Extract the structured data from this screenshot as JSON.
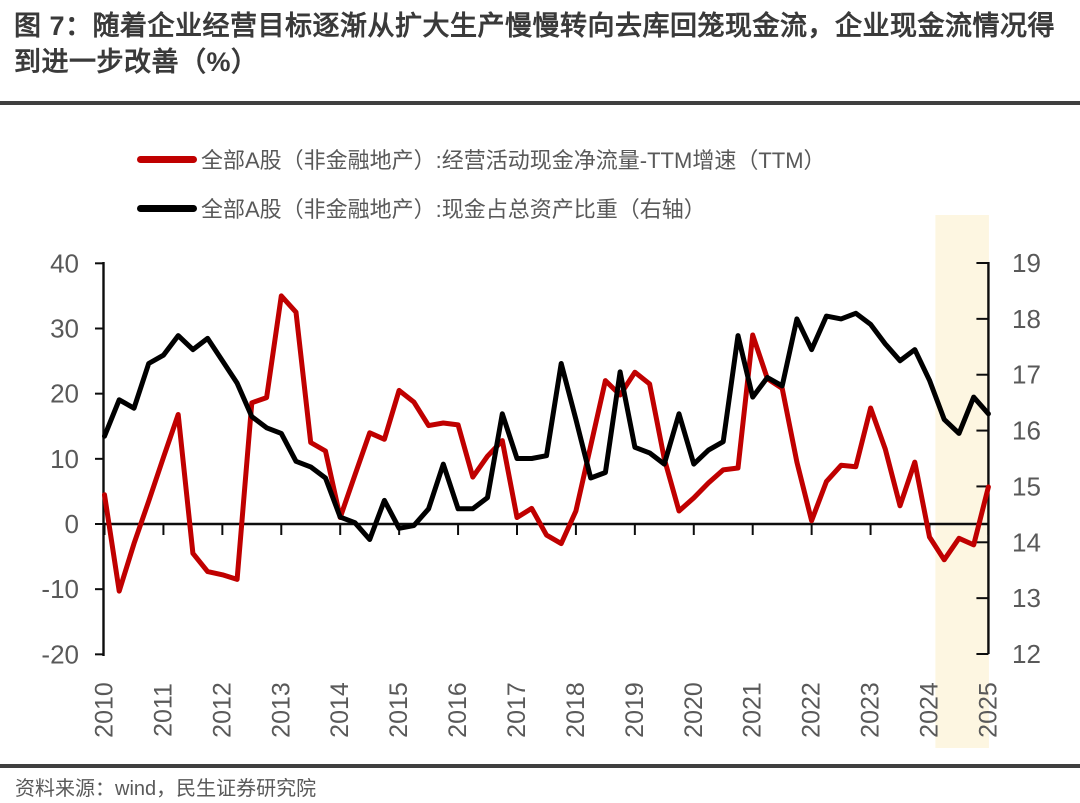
{
  "figure": {
    "title": "图 7：随着企业经营目标逐渐从扩大生产慢慢转向去库回笼现金流，企业现金流情况得到进一步改善（%）",
    "source": "资料来源：wind，民生证券研究院"
  },
  "legend": [
    {
      "label": "全部A股（非金融地产）:经营活动现金净流量-TTM增速（TTM）",
      "color": "#c00000"
    },
    {
      "label": "全部A股（非金融地产）:现金占总资产比重（右轴）",
      "color": "#000000"
    }
  ],
  "chart_data": {
    "type": "line",
    "frequency": "quarterly",
    "x_start": "2010Q1",
    "x_end": "2025Q1",
    "x_tick_labels": [
      "2010",
      "2011",
      "2012",
      "2013",
      "2014",
      "2015",
      "2016",
      "2017",
      "2018",
      "2019",
      "2020",
      "2021",
      "2022",
      "2023",
      "2024",
      "2025"
    ],
    "left_axis": {
      "ticks": [
        40,
        30,
        20,
        10,
        0,
        -10,
        -20
      ],
      "min": -20,
      "max": 40
    },
    "right_axis": {
      "ticks": [
        19,
        18,
        17,
        16,
        15,
        14,
        13,
        12
      ],
      "min": 12,
      "max": 19
    },
    "grid": false,
    "highlight_band": {
      "start_index": 56.4,
      "end_index": 60,
      "color": "#fdf6e1",
      "note": "2024H2-2025Q1 highlight"
    },
    "series": [
      {
        "name": "全部A股（非金融地产）:经营活动现金净流量-TTM增速（TTM）",
        "axis": "left",
        "color": "#c00000",
        "values": [
          4.5,
          -10.3,
          -3,
          3.5,
          10.2,
          16.8,
          -4.5,
          -7.3,
          -7.8,
          -8.5,
          18.6,
          19.4,
          35,
          32.5,
          12.5,
          11.2,
          1,
          7.5,
          14,
          13,
          20.5,
          18.7,
          15.1,
          15.5,
          15.2,
          7.2,
          10.4,
          12.8,
          1,
          2.4,
          -1.7,
          -3,
          2,
          12,
          22,
          19.8,
          23.3,
          21.5,
          10,
          2,
          4,
          6.3,
          8.3,
          8.6,
          29,
          22.3,
          20.8,
          9.5,
          0.5,
          6.5,
          9,
          8.8,
          17.8,
          11.5,
          2.8,
          9.5,
          -2,
          -5.5,
          -2.2,
          -3.2,
          5.7
        ]
      },
      {
        "name": "全部A股（非金融地产）:现金占总资产比重（右轴）",
        "axis": "right",
        "color": "#000000",
        "values": [
          15.9,
          16.55,
          16.4,
          17.2,
          17.35,
          17.7,
          17.45,
          17.65,
          17.25,
          16.85,
          16.25,
          16.05,
          15.95,
          15.45,
          15.35,
          15.15,
          14.45,
          14.35,
          14.05,
          14.75,
          14.25,
          14.3,
          14.6,
          15.4,
          14.6,
          14.6,
          14.8,
          16.3,
          15.5,
          15.5,
          15.55,
          17.2,
          16.2,
          15.15,
          15.25,
          17.05,
          15.7,
          15.6,
          15.4,
          16.3,
          15.4,
          15.65,
          15.8,
          17.7,
          16.6,
          16.95,
          16.8,
          18,
          17.45,
          18.05,
          18,
          18.1,
          17.9,
          17.55,
          17.25,
          17.45,
          16.9,
          16.2,
          15.95,
          16.6,
          16.3
        ]
      }
    ],
    "colors": {
      "tick_label": "#595959",
      "axis_line": "#0d0d0d",
      "rule": "#3f3f3f"
    }
  }
}
